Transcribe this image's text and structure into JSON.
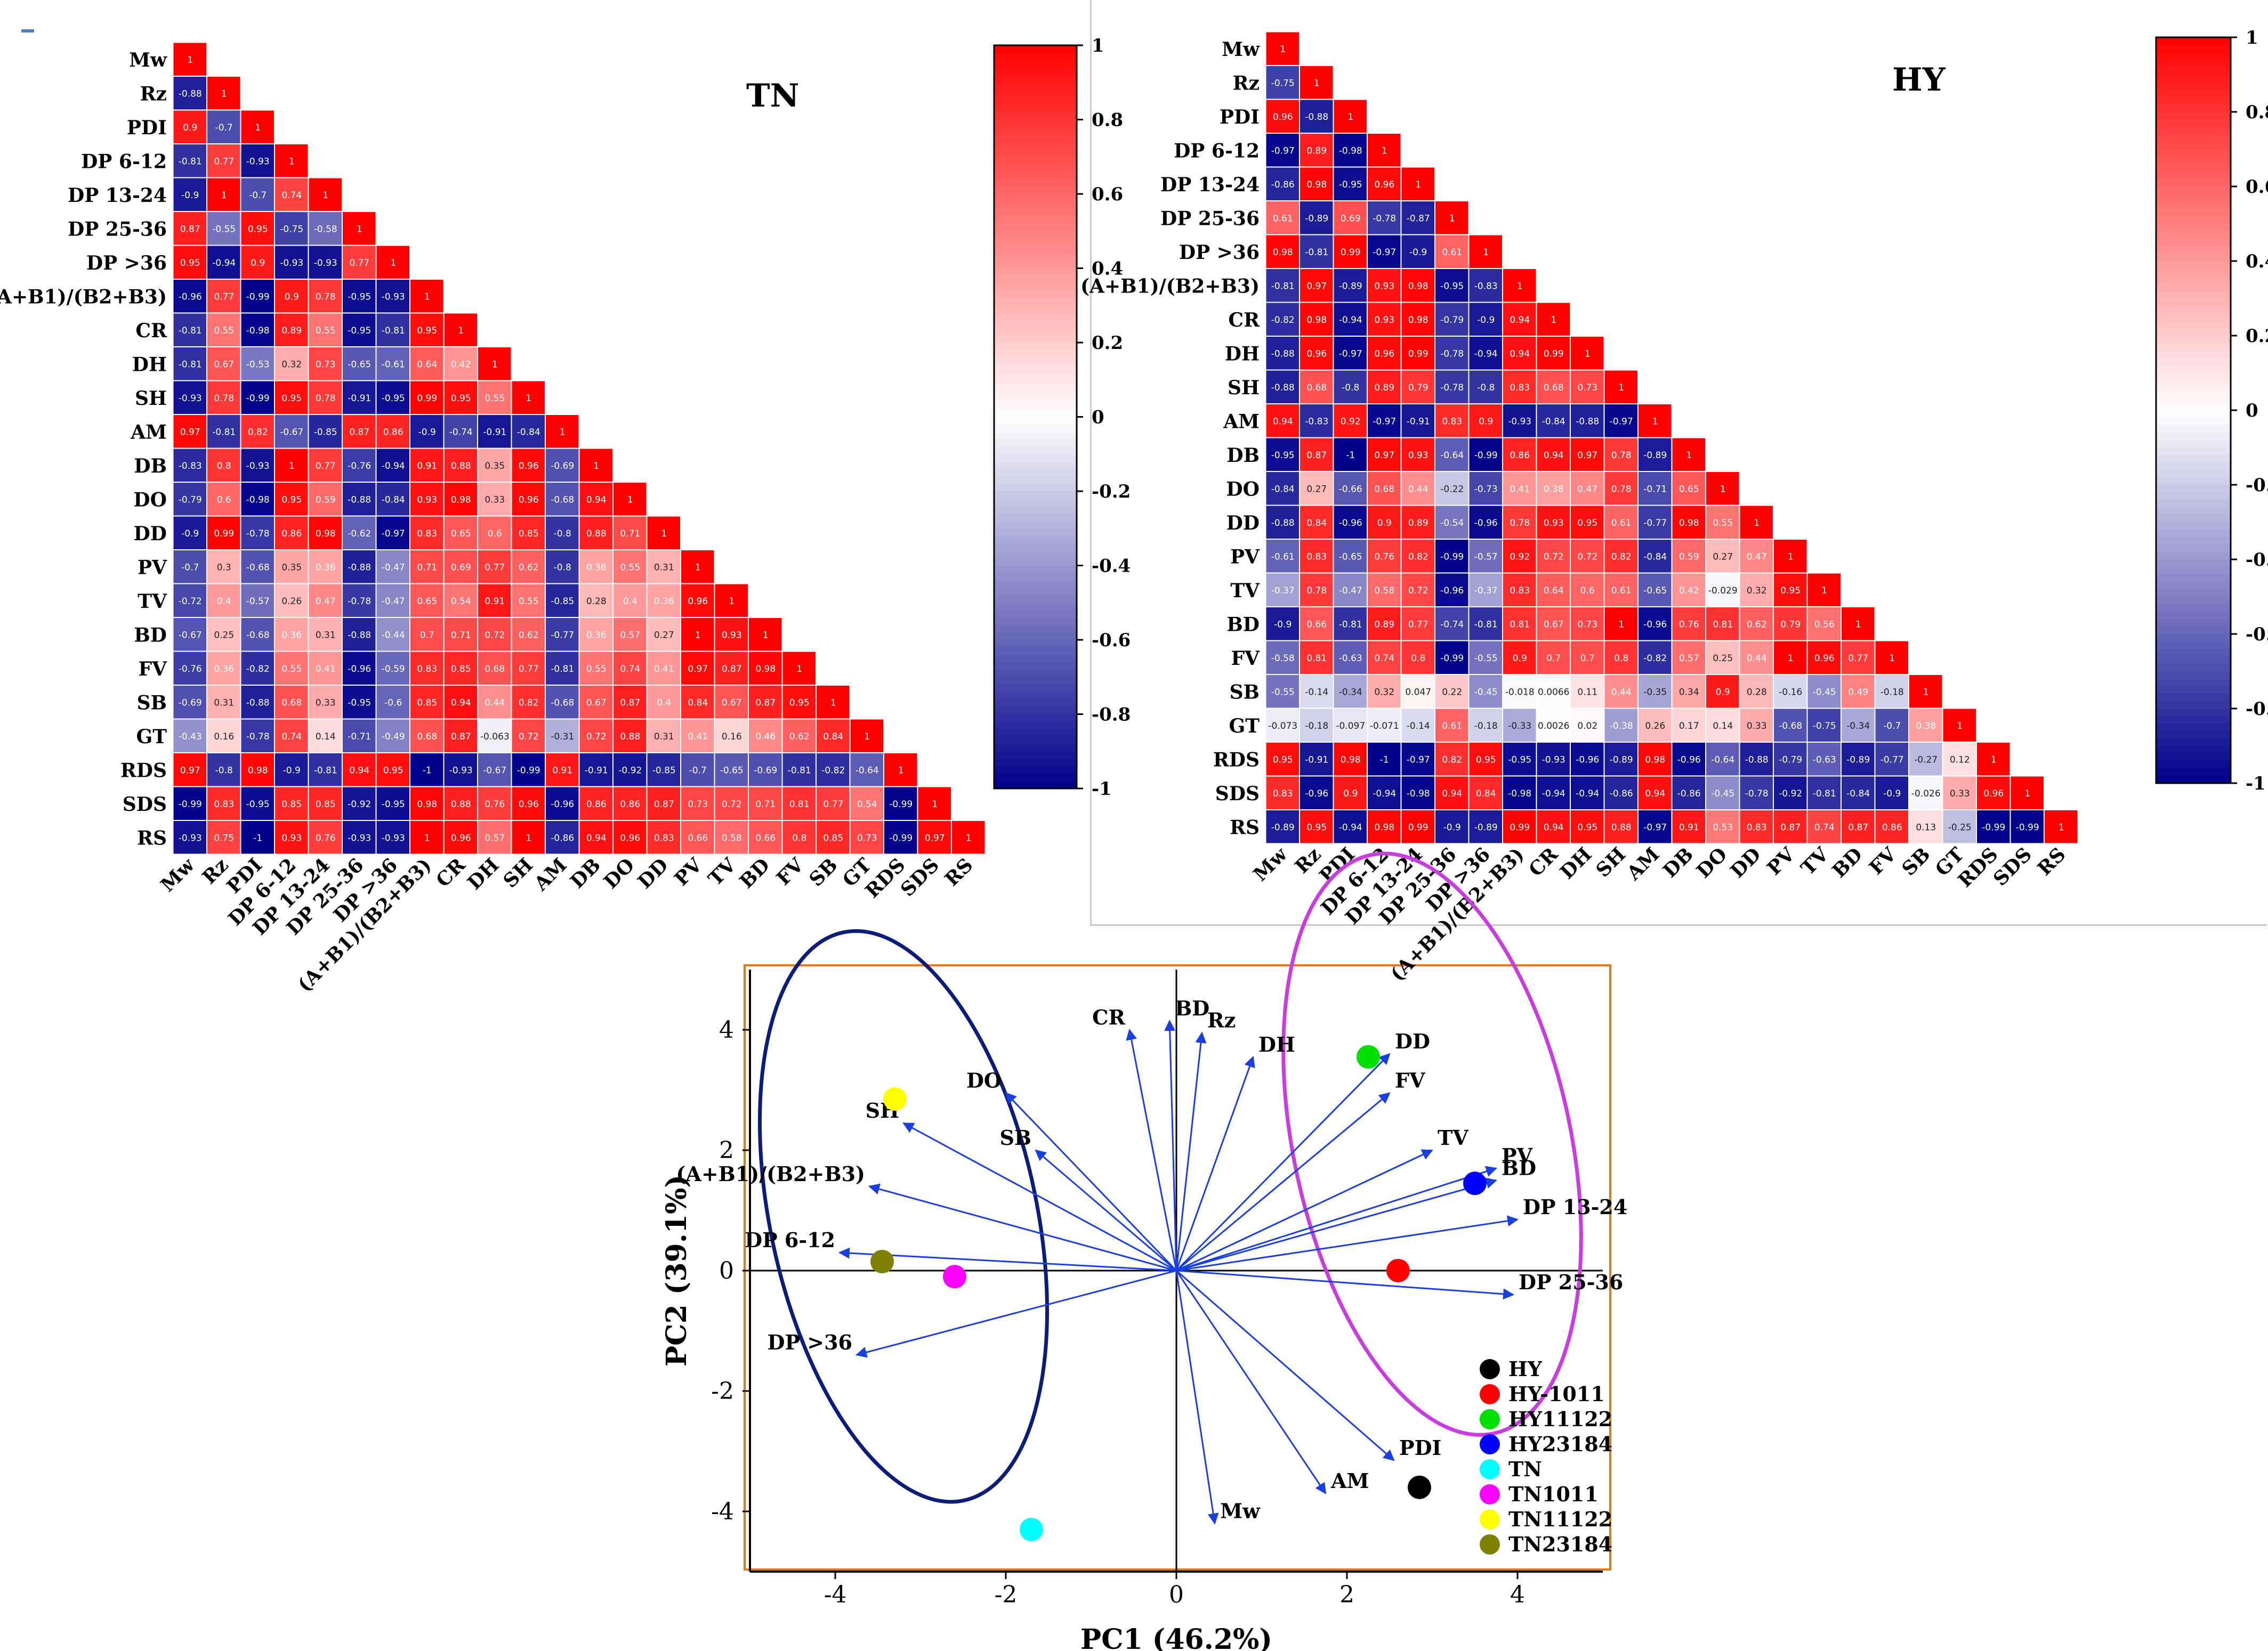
{
  "labels": [
    "Mw",
    "Rz",
    "PDI",
    "DP 6-12",
    "DP 13-24",
    "DP 25-36",
    "DP >36",
    "(A+B1)/(B2+B3)",
    "CR",
    "DH",
    "SH",
    "AM",
    "DB",
    "DO",
    "DD",
    "PV",
    "TV",
    "BD",
    "FV",
    "SB",
    "GT",
    "RDS",
    "SDS",
    "RS"
  ],
  "colorbar_ticks": [
    "1",
    "0.8",
    "0.6",
    "0.4",
    "0.2",
    "0",
    "-0.2",
    "-0.4",
    "-0.6",
    "-0.8",
    "-1"
  ],
  "colors": {
    "positive": "#ff0000",
    "neutral": "#ffffff",
    "negative": "#00008b",
    "pca_frame": "#e07b1a",
    "arrow": "#1a3fe0",
    "tn_ellipse": "#0b1c7a",
    "hy_ellipse": "#c83ce0"
  },
  "chart_data": [
    {
      "type": "heatmap",
      "title": "TN",
      "value_range": [
        -1,
        1
      ],
      "rows": [
        [
          "1"
        ],
        [
          "-0.88",
          "1"
        ],
        [
          "0.9",
          "-0.7",
          "1"
        ],
        [
          "-0.81",
          "0.77",
          "-0.93",
          "1"
        ],
        [
          "-0.9",
          "1",
          "-0.7",
          "0.74",
          "1"
        ],
        [
          "0.87",
          "-0.55",
          "0.95",
          "-0.75",
          "-0.58",
          "1"
        ],
        [
          "0.95",
          "-0.94",
          "0.9",
          "-0.93",
          "-0.93",
          "0.77",
          "1"
        ],
        [
          "-0.96",
          "0.77",
          "-0.99",
          "0.9",
          "0.78",
          "-0.95",
          "-0.93",
          "1"
        ],
        [
          "-0.81",
          "0.55",
          "-0.98",
          "0.89",
          "0.55",
          "-0.95",
          "-0.81",
          "0.95",
          "1"
        ],
        [
          "-0.81",
          "0.67",
          "-0.53",
          "0.32",
          "0.73",
          "-0.65",
          "-0.61",
          "0.64",
          "0.42",
          "1"
        ],
        [
          "-0.93",
          "0.78",
          "-0.99",
          "0.95",
          "0.78",
          "-0.91",
          "-0.95",
          "0.99",
          "0.95",
          "0.55",
          "1"
        ],
        [
          "0.97",
          "-0.81",
          "0.82",
          "-0.67",
          "-0.85",
          "0.87",
          "0.86",
          "-0.9",
          "-0.74",
          "-0.91",
          "-0.84",
          "1"
        ],
        [
          "-0.83",
          "0.8",
          "-0.93",
          "1",
          "0.77",
          "-0.76",
          "-0.94",
          "0.91",
          "0.88",
          "0.35",
          "0.96",
          "-0.69",
          "1"
        ],
        [
          "-0.79",
          "0.6",
          "-0.98",
          "0.95",
          "0.59",
          "-0.88",
          "-0.84",
          "0.93",
          "0.98",
          "0.33",
          "0.96",
          "-0.68",
          "0.94",
          "1"
        ],
        [
          "-0.9",
          "0.99",
          "-0.78",
          "0.86",
          "0.98",
          "-0.62",
          "-0.97",
          "0.83",
          "0.65",
          "0.6",
          "0.85",
          "-0.8",
          "0.88",
          "0.71",
          "1"
        ],
        [
          "-0.7",
          "0.3",
          "-0.68",
          "0.35",
          "0.36",
          "-0.88",
          "-0.47",
          "0.71",
          "0.69",
          "0.77",
          "0.62",
          "-0.8",
          "0.36",
          "0.55",
          "0.31",
          "1"
        ],
        [
          "-0.72",
          "0.4",
          "-0.57",
          "0.26",
          "0.47",
          "-0.78",
          "-0.47",
          "0.65",
          "0.54",
          "0.91",
          "0.55",
          "-0.85",
          "0.28",
          "0.4",
          "0.36",
          "0.96",
          "1"
        ],
        [
          "-0.67",
          "0.25",
          "-0.68",
          "0.36",
          "0.31",
          "-0.88",
          "-0.44",
          "0.7",
          "0.71",
          "0.72",
          "0.62",
          "-0.77",
          "0.36",
          "0.57",
          "0.27",
          "1",
          "0.93",
          "1"
        ],
        [
          "-0.76",
          "0.36",
          "-0.82",
          "0.55",
          "0.41",
          "-0.96",
          "-0.59",
          "0.83",
          "0.85",
          "0.68",
          "0.77",
          "-0.81",
          "0.55",
          "0.74",
          "0.41",
          "0.97",
          "0.87",
          "0.98",
          "1"
        ],
        [
          "-0.69",
          "0.31",
          "-0.88",
          "0.68",
          "0.33",
          "-0.95",
          "-0.6",
          "0.85",
          "0.94",
          "0.44",
          "0.82",
          "-0.68",
          "0.67",
          "0.87",
          "0.4",
          "0.84",
          "0.67",
          "0.87",
          "0.95",
          "1"
        ],
        [
          "-0.43",
          "0.16",
          "-0.78",
          "0.74",
          "0.14",
          "-0.71",
          "-0.49",
          "0.68",
          "0.87",
          "-0.063",
          "0.72",
          "-0.31",
          "0.72",
          "0.88",
          "0.31",
          "0.41",
          "0.16",
          "0.46",
          "0.62",
          "0.84",
          "1"
        ],
        [
          "0.97",
          "-0.8",
          "0.98",
          "-0.9",
          "-0.81",
          "0.94",
          "0.95",
          "-1",
          "-0.93",
          "-0.67",
          "-0.99",
          "0.91",
          "-0.91",
          "-0.92",
          "-0.85",
          "-0.7",
          "-0.65",
          "-0.69",
          "-0.81",
          "-0.82",
          "-0.64",
          "1"
        ],
        [
          "-0.99",
          "0.83",
          "-0.95",
          "0.85",
          "0.85",
          "-0.92",
          "-0.95",
          "0.98",
          "0.88",
          "0.76",
          "0.96",
          "-0.96",
          "0.86",
          "0.86",
          "0.87",
          "0.73",
          "0.72",
          "0.71",
          "0.81",
          "0.77",
          "0.54",
          "-0.99",
          "1"
        ],
        [
          "-0.93",
          "0.75",
          "-1",
          "0.93",
          "0.76",
          "-0.93",
          "-0.93",
          "1",
          "0.96",
          "0.57",
          "1",
          "-0.86",
          "0.94",
          "0.96",
          "0.83",
          "0.66",
          "0.58",
          "0.66",
          "0.8",
          "0.85",
          "0.73",
          "-0.99",
          "0.97",
          "1"
        ]
      ]
    },
    {
      "type": "heatmap",
      "title": "HY",
      "value_range": [
        -1,
        1
      ],
      "rows": [
        [
          "1"
        ],
        [
          "-0.75",
          "1"
        ],
        [
          "0.96",
          "-0.88",
          "1"
        ],
        [
          "-0.97",
          "0.89",
          "-0.98",
          "1"
        ],
        [
          "-0.86",
          "0.98",
          "-0.95",
          "0.96",
          "1"
        ],
        [
          "0.61",
          "-0.89",
          "0.69",
          "-0.78",
          "-0.87",
          "1"
        ],
        [
          "0.98",
          "-0.81",
          "0.99",
          "-0.97",
          "-0.9",
          "0.61",
          "1"
        ],
        [
          "-0.81",
          "0.97",
          "-0.89",
          "0.93",
          "0.98",
          "-0.95",
          "-0.83",
          "1"
        ],
        [
          "-0.82",
          "0.98",
          "-0.94",
          "0.93",
          "0.98",
          "-0.79",
          "-0.9",
          "0.94",
          "1"
        ],
        [
          "-0.88",
          "0.96",
          "-0.97",
          "0.96",
          "0.99",
          "-0.78",
          "-0.94",
          "0.94",
          "0.99",
          "1"
        ],
        [
          "-0.88",
          "0.68",
          "-0.8",
          "0.89",
          "0.79",
          "-0.78",
          "-0.8",
          "0.83",
          "0.68",
          "0.73",
          "1"
        ],
        [
          "0.94",
          "-0.83",
          "0.92",
          "-0.97",
          "-0.91",
          "0.83",
          "0.9",
          "-0.93",
          "-0.84",
          "-0.88",
          "-0.97",
          "1"
        ],
        [
          "-0.95",
          "0.87",
          "-1",
          "0.97",
          "0.93",
          "-0.64",
          "-0.99",
          "0.86",
          "0.94",
          "0.97",
          "0.78",
          "-0.89",
          "1"
        ],
        [
          "-0.84",
          "0.27",
          "-0.66",
          "0.68",
          "0.44",
          "-0.22",
          "-0.73",
          "0.41",
          "0.38",
          "0.47",
          "0.78",
          "-0.71",
          "0.65",
          "1"
        ],
        [
          "-0.88",
          "0.84",
          "-0.96",
          "0.9",
          "0.89",
          "-0.54",
          "-0.96",
          "0.78",
          "0.93",
          "0.95",
          "0.61",
          "-0.77",
          "0.98",
          "0.55",
          "1"
        ],
        [
          "-0.61",
          "0.83",
          "-0.65",
          "0.76",
          "0.82",
          "-0.99",
          "-0.57",
          "0.92",
          "0.72",
          "0.72",
          "0.82",
          "-0.84",
          "0.59",
          "0.27",
          "0.47",
          "1"
        ],
        [
          "-0.37",
          "0.78",
          "-0.47",
          "0.58",
          "0.72",
          "-0.96",
          "-0.37",
          "0.83",
          "0.64",
          "0.6",
          "0.61",
          "-0.65",
          "0.42",
          "-0.029",
          "0.32",
          "0.95",
          "1"
        ],
        [
          "-0.9",
          "0.66",
          "-0.81",
          "0.89",
          "0.77",
          "-0.74",
          "-0.81",
          "0.81",
          "0.67",
          "0.73",
          "1",
          "-0.96",
          "0.76",
          "0.81",
          "0.62",
          "0.79",
          "0.56",
          "1"
        ],
        [
          "-0.58",
          "0.81",
          "-0.63",
          "0.74",
          "0.8",
          "-0.99",
          "-0.55",
          "0.9",
          "0.7",
          "0.7",
          "0.8",
          "-0.82",
          "0.57",
          "0.25",
          "0.44",
          "1",
          "0.96",
          "0.77",
          "1"
        ],
        [
          "-0.55",
          "-0.14",
          "-0.34",
          "0.32",
          "0.047",
          "0.22",
          "-0.45",
          "-0.018",
          "0.0066",
          "0.11",
          "0.44",
          "-0.35",
          "0.34",
          "0.9",
          "0.28",
          "-0.16",
          "-0.45",
          "0.49",
          "-0.18",
          "1"
        ],
        [
          "-0.073",
          "-0.18",
          "-0.097",
          "-0.071",
          "-0.14",
          "0.61",
          "-0.18",
          "-0.33",
          "0.0026",
          "0.02",
          "-0.38",
          "0.26",
          "0.17",
          "0.14",
          "0.33",
          "-0.68",
          "-0.75",
          "-0.34",
          "-0.7",
          "0.38",
          "1"
        ],
        [
          "0.95",
          "-0.91",
          "0.98",
          "-1",
          "-0.97",
          "0.82",
          "0.95",
          "-0.95",
          "-0.93",
          "-0.96",
          "-0.89",
          "0.98",
          "-0.96",
          "-0.64",
          "-0.88",
          "-0.79",
          "-0.63",
          "-0.89",
          "-0.77",
          "-0.27",
          "0.12",
          "1"
        ],
        [
          "0.83",
          "-0.96",
          "0.9",
          "-0.94",
          "-0.98",
          "0.94",
          "0.84",
          "-0.98",
          "-0.94",
          "-0.94",
          "-0.86",
          "0.94",
          "-0.86",
          "-0.45",
          "-0.78",
          "-0.92",
          "-0.81",
          "-0.84",
          "-0.9",
          "-0.026",
          "0.33",
          "0.96",
          "1"
        ],
        [
          "-0.89",
          "0.95",
          "-0.94",
          "0.98",
          "0.99",
          "-0.9",
          "-0.89",
          "0.99",
          "0.94",
          "0.95",
          "0.88",
          "-0.97",
          "0.91",
          "0.53",
          "0.83",
          "0.87",
          "0.74",
          "0.87",
          "0.86",
          "0.13",
          "-0.25",
          "-0.99",
          "-0.99",
          "1"
        ]
      ]
    },
    {
      "type": "scatter",
      "subtype": "pca-biplot",
      "xlabel": "PC1 (46.2%)",
      "ylabel": "PC2 (39.1%)",
      "xlim": [
        -5,
        5
      ],
      "ylim": [
        -5,
        5
      ],
      "xticks": [
        "-4",
        "-2",
        "0",
        "2",
        "4"
      ],
      "yticks": [
        "4",
        "2",
        "0",
        "-2",
        "-4"
      ],
      "samples": [
        {
          "name": "HY",
          "color": "#000000",
          "x": 2.85,
          "y": -3.6
        },
        {
          "name": "HY-1011",
          "color": "#ff0000",
          "x": 2.6,
          "y": 0.0
        },
        {
          "name": "HY11122",
          "color": "#00e000",
          "x": 2.25,
          "y": 3.55
        },
        {
          "name": "HY23184",
          "color": "#0000ff",
          "x": 3.5,
          "y": 1.45
        },
        {
          "name": "TN",
          "color": "#00ffff",
          "x": -1.7,
          "y": -4.3
        },
        {
          "name": "TN1011",
          "color": "#ff00ff",
          "x": -2.6,
          "y": -0.1
        },
        {
          "name": "TN11122",
          "color": "#ffff00",
          "x": -3.3,
          "y": 2.85
        },
        {
          "name": "TN23184",
          "color": "#808000",
          "x": -3.45,
          "y": 0.15
        }
      ],
      "loadings": [
        {
          "label": "CR",
          "x": -0.55,
          "y": 4.0
        },
        {
          "label": "BD",
          "x": -0.08,
          "y": 4.15
        },
        {
          "label": "Rz",
          "x": 0.3,
          "y": 3.95
        },
        {
          "label": "DH",
          "x": 0.9,
          "y": 3.55
        },
        {
          "label": "DD",
          "x": 2.5,
          "y": 3.6
        },
        {
          "label": "FV",
          "x": 2.5,
          "y": 2.95
        },
        {
          "label": "TV",
          "x": 3.0,
          "y": 2.0
        },
        {
          "label": "PV",
          "x": 3.75,
          "y": 1.7
        },
        {
          "label": "BD",
          "x": 3.75,
          "y": 1.5
        },
        {
          "label": "DP 13-24",
          "x": 4.0,
          "y": 0.85
        },
        {
          "label": "DP 25-36",
          "x": 3.95,
          "y": -0.4
        },
        {
          "label": "PDI",
          "x": 2.55,
          "y": -3.15
        },
        {
          "label": "AM",
          "x": 1.75,
          "y": -3.7
        },
        {
          "label": "Mw",
          "x": 0.45,
          "y": -4.2
        },
        {
          "label": "DO",
          "x": -2.0,
          "y": 2.95
        },
        {
          "label": "SB",
          "x": -1.65,
          "y": 2.0
        },
        {
          "label": "SH",
          "x": -3.2,
          "y": 2.45
        },
        {
          "label": "(A+B1)/(B2+B3)",
          "x": -3.6,
          "y": 1.4
        },
        {
          "label": "DP 6-12",
          "x": -3.95,
          "y": 0.3
        },
        {
          "label": "DP >36",
          "x": -3.75,
          "y": -1.4
        }
      ]
    }
  ]
}
